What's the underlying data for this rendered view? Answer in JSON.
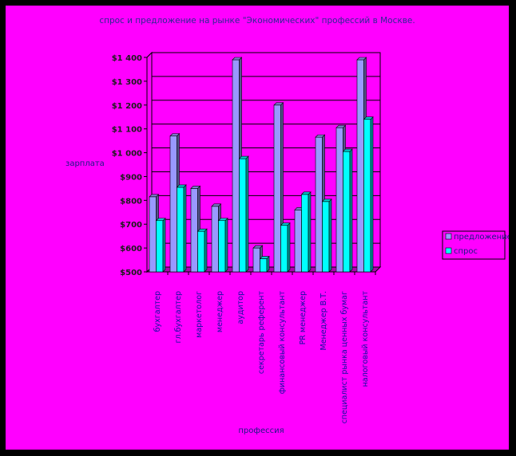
{
  "chart_data": {
    "type": "bar",
    "title": "спрос и предложение на рынке \"Экономических\" профессий в Москве.",
    "xlabel": "профессия",
    "ylabel": "зарплата",
    "ylim": [
      500,
      1400
    ],
    "yticks": [
      500,
      600,
      700,
      800,
      900,
      1000,
      1100,
      1200,
      1300,
      1400
    ],
    "ytick_labels": [
      "$500",
      "$600",
      "$700",
      "$800",
      "$900",
      "$1 000",
      "$1 100",
      "$1 200",
      "$1 300",
      "$1 400"
    ],
    "categories": [
      "бухгалтер",
      "гл.бухгалтер",
      "маркетолог",
      "менеджер",
      "аудитор",
      "секретарь  референт",
      "финансовый  консультант",
      "PR    менеджер",
      "Менеджер В.Т.",
      "специалист рынка ценных бумаг",
      "налоговый консультант"
    ],
    "series": [
      {
        "name": "предложение",
        "color": "#9999ff",
        "values": [
          815,
          1070,
          850,
          775,
          1390,
          600,
          1200,
          760,
          1065,
          1105,
          1390
        ]
      },
      {
        "name": "спрос",
        "color": "#00ffff",
        "values": [
          715,
          855,
          670,
          715,
          975,
          555,
          695,
          825,
          795,
          1005,
          1140
        ]
      }
    ],
    "grid": true,
    "legend_position": "right"
  },
  "colors": {
    "background": "#ff00ff",
    "border": "#000000",
    "plot_area": "#ff00ff",
    "gridline": "#000000"
  }
}
